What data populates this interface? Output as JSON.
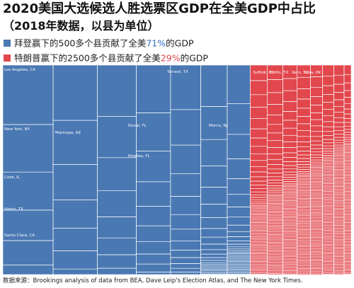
{
  "chart_data": {
    "type": "treemap",
    "title": "2020美国大选候选人胜选票区GDP在全美GDP中占比",
    "subtitle": "（2018年数据，以县为单位）",
    "series": [
      {
        "label_before": "拜登赢下的500多个县贡献了全美",
        "value": 71,
        "value_label": "71%",
        "label_after": "的GDP",
        "color": "#4a78b3",
        "highlight_color": "#2f6fc0"
      },
      {
        "label_before": "特朗普赢下的2500多个县贡献了全美",
        "value": 29,
        "value_label": "29%",
        "label_after": "的GDP",
        "color": "#e1474d",
        "highlight_color": "#e1474d"
      }
    ],
    "county_labels": [
      {
        "series": 0,
        "label": "Los Angeles, CA"
      },
      {
        "series": 0,
        "label": "New York, NY"
      },
      {
        "series": 0,
        "label": "Cook, IL"
      },
      {
        "series": 0,
        "label": "Harris, TX"
      },
      {
        "series": 0,
        "label": "Santa Clara, CA"
      },
      {
        "series": 0,
        "label": "Maricopa, AZ"
      },
      {
        "series": 0,
        "label": "Tarrant, TX"
      },
      {
        "series": 0,
        "label": "Duval, FL"
      },
      {
        "series": 0,
        "label": "Pinellas, FL"
      },
      {
        "series": 0,
        "label": "Morris, NJ"
      },
      {
        "series": 1,
        "label": "Suffolk, NY"
      },
      {
        "series": 1,
        "label": "Collin, TX"
      },
      {
        "series": 1,
        "label": "Kern, TX"
      },
      {
        "series": 1,
        "label": "Tulsa, OK"
      }
    ],
    "source": "数据来源：Brookings analysis of data from BEA, Dave Leip's Election Atlas, and The New York Times."
  }
}
